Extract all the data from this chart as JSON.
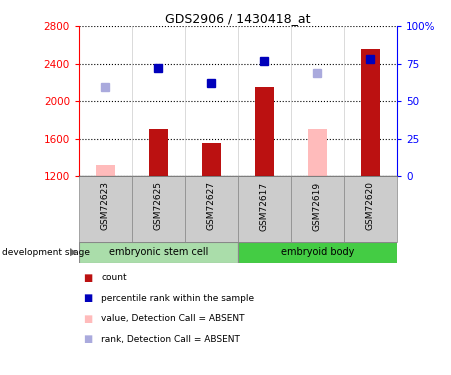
{
  "title": "GDS2906 / 1430418_at",
  "samples": [
    "GSM72623",
    "GSM72625",
    "GSM72627",
    "GSM72617",
    "GSM72619",
    "GSM72620"
  ],
  "group_labels": [
    "embryonic stem cell",
    "embryoid body"
  ],
  "ylim_left": [
    1200,
    2800
  ],
  "ylim_right": [
    0,
    100
  ],
  "yticks_left": [
    1200,
    1600,
    2000,
    2400,
    2800
  ],
  "yticks_right": [
    0,
    25,
    50,
    75,
    100
  ],
  "yright_labels": [
    "0",
    "25",
    "50",
    "75",
    "100%"
  ],
  "red_bars": [
    null,
    1700,
    1560,
    2150,
    null,
    2560
  ],
  "pink_bars": [
    1320,
    null,
    null,
    null,
    1700,
    null
  ],
  "blue_squares": [
    null,
    2350,
    2200,
    2430,
    null,
    2450
  ],
  "lightblue_squares": [
    2150,
    null,
    null,
    null,
    2300,
    null
  ],
  "bar_width": 0.35,
  "color_red": "#BB1111",
  "color_pink": "#FFBBBB",
  "color_blue": "#0000BB",
  "color_lightblue": "#AAAADD",
  "color_group1_light": "#AADDAA",
  "color_group2_bright": "#44CC44",
  "color_sample_bg": "#CCCCCC",
  "legend_items": [
    {
      "label": "count",
      "color": "#BB1111"
    },
    {
      "label": "percentile rank within the sample",
      "color": "#0000BB"
    },
    {
      "label": "value, Detection Call = ABSENT",
      "color": "#FFBBBB"
    },
    {
      "label": "rank, Detection Call = ABSENT",
      "color": "#AAAADD"
    }
  ]
}
